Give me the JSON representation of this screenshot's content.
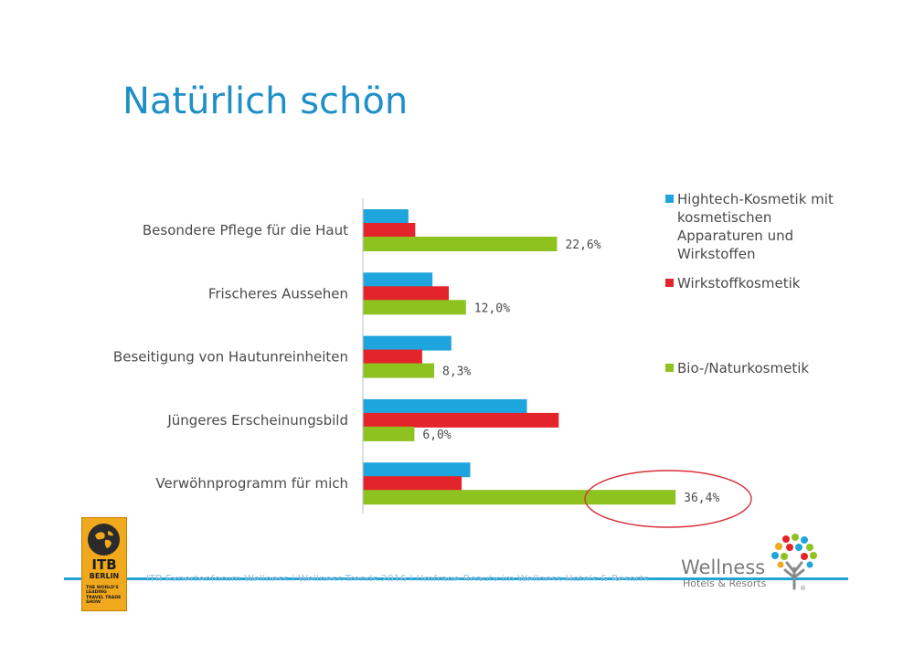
{
  "slide": {
    "title": "Natürlich schön",
    "footer": "ITB Expertenforum Wellness | Wellness-Trends 2016 | Umfrage Beauty im Wellness-Hotels & Resorts"
  },
  "chart_data": {
    "type": "bar",
    "orientation": "horizontal",
    "categories": [
      "Besondere Pflege für die Haut",
      "Frischeres Aussehen",
      "Beseitigung von Hautunreinheiten",
      "Jüngeres Erscheinungsbild",
      "Verwöhnprogramm für mich"
    ],
    "series": [
      {
        "name": "Hightech-Kosmetik mit kosmetischen Apparaturen und Wirkstoffen",
        "color": "#1fa5dd",
        "values": [
          5.3,
          8.1,
          10.3,
          19.1,
          12.5
        ]
      },
      {
        "name": "Wirkstoffkosmetik",
        "color": "#e3242b",
        "values": [
          6.1,
          10.0,
          6.9,
          22.8,
          11.5
        ]
      },
      {
        "name": "Bio-/Naturkosmetik",
        "color": "#8dc21f",
        "values": [
          22.6,
          12.0,
          8.3,
          6.0,
          36.4
        ]
      }
    ],
    "data_labels": [
      "22,6%",
      "12,0%",
      "8,3%",
      "6,0%",
      "36,4%"
    ],
    "legend_position": "right",
    "highlight": "36,4%",
    "highlight_color": "#d6303a"
  },
  "logos": {
    "itb": {
      "big": "ITB",
      "mid": "BERLIN",
      "small": "THE WORLD'S LEADING TRAVEL TRADE SHOW"
    },
    "wellness": {
      "word": "Wellness",
      "sub": "Hotels & Resorts",
      "mark": "®"
    }
  }
}
